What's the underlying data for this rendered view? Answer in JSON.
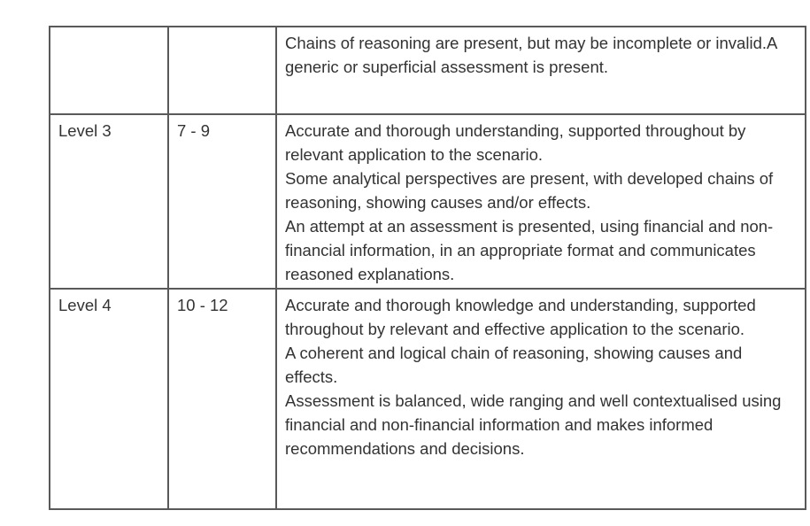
{
  "table": {
    "title_semantic": "mark-scheme-levels-table",
    "border_color": "#595959",
    "text_color": "#333333",
    "columns": [
      "level",
      "marks",
      "description"
    ],
    "rows": [
      {
        "level": "",
        "marks": "",
        "description": "Chains of reasoning are present, but may be incomplete or invalid.A generic or superficial assessment is present."
      },
      {
        "level": "Level 3",
        "marks": "7 - 9",
        "description": "Accurate and thorough understanding, supported throughout by relevant application to the scenario.\nSome analytical perspectives are present, with developed chains of reasoning, showing causes and/or effects.\nAn attempt at an assessment is presented, using financial and non-financial information, in an appropriate format and communicates reasoned explanations."
      },
      {
        "level": "Level 4",
        "marks": "10 - 12",
        "description": "Accurate and thorough knowledge and understanding, supported throughout by relevant and effective application to the scenario.\nA coherent and logical chain of reasoning, showing causes and effects.\nAssessment is balanced, wide ranging and well contextualised using financial and non-financial information and makes informed recommendations and decisions."
      }
    ]
  }
}
